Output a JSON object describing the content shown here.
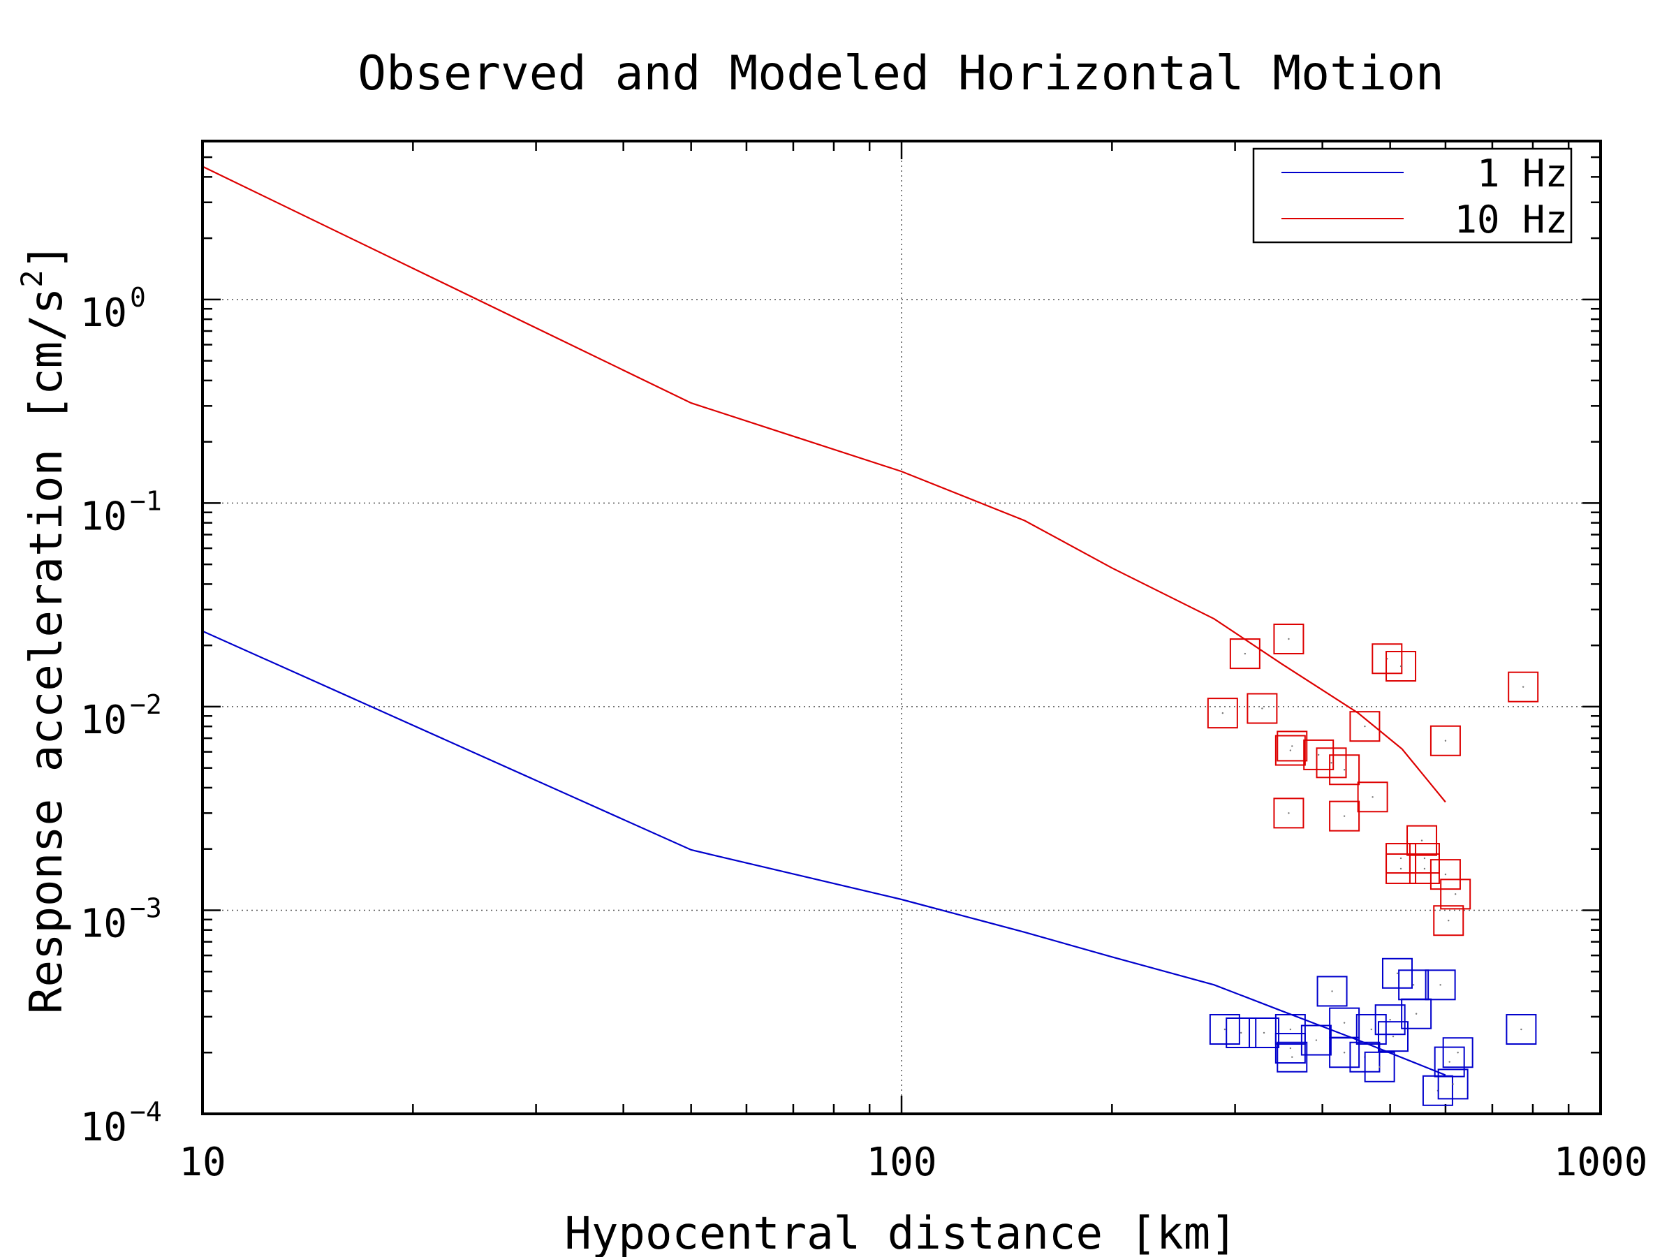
{
  "chart_data": {
    "type": "scatter",
    "title": "Observed and Modeled Horizontal Motion",
    "xlabel": "Hypocentral distance [km]",
    "ylabel_main": "Response acceleration [cm/s",
    "ylabel_exp": "2",
    "ylabel_close": "]",
    "x_scale": "log",
    "y_scale": "log",
    "xlim": [
      10,
      1000
    ],
    "ylim": [
      0.0001,
      6
    ],
    "x_ticks": [
      {
        "value": 10,
        "label": "10"
      },
      {
        "value": 100,
        "label": "100"
      },
      {
        "value": 1000,
        "label": "1000"
      }
    ],
    "y_ticks": [
      {
        "value": 1,
        "base": "10",
        "exp": "0"
      },
      {
        "value": 0.1,
        "base": "10",
        "exp": "−1"
      },
      {
        "value": 0.01,
        "base": "10",
        "exp": "−2"
      },
      {
        "value": 0.001,
        "base": "10",
        "exp": "−3"
      },
      {
        "value": 0.0001,
        "base": "10",
        "exp": "−4"
      }
    ],
    "grid": "dotted",
    "legend_position": "top-right",
    "series": [
      {
        "name": "1 Hz",
        "color": "#0000cc",
        "line": [
          [
            10,
            0.0235
          ],
          [
            50,
            0.00198
          ],
          [
            100,
            0.00113
          ],
          [
            150,
            0.00078
          ],
          [
            200,
            0.00059
          ],
          [
            280,
            0.00043
          ],
          [
            350,
            0.00032
          ],
          [
            450,
            0.00023
          ],
          [
            600,
            0.000155
          ]
        ],
        "points": [
          [
            290,
            0.00026
          ],
          [
            306,
            0.00025
          ],
          [
            330,
            0.00025
          ],
          [
            360,
            0.00026
          ],
          [
            360,
            0.00021
          ],
          [
            362,
            0.00019
          ],
          [
            392,
            0.00023
          ],
          [
            413,
            0.0004
          ],
          [
            430,
            0.00028
          ],
          [
            430,
            0.0002
          ],
          [
            460,
            0.00019
          ],
          [
            470,
            0.00026
          ],
          [
            483,
            0.00017
          ],
          [
            500,
            0.00029
          ],
          [
            505,
            0.00024
          ],
          [
            512,
            0.00049
          ],
          [
            540,
            0.00043
          ],
          [
            545,
            0.00031
          ],
          [
            590,
            0.00043
          ],
          [
            585,
            0.00013
          ],
          [
            608,
            0.00018
          ],
          [
            615,
            0.00014
          ],
          [
            625,
            0.0002
          ],
          [
            770,
            0.00026
          ]
        ]
      },
      {
        "name": "10 Hz",
        "color": "#dd0000",
        "line": [
          [
            10,
            4.5
          ],
          [
            50,
            0.31
          ],
          [
            100,
            0.143
          ],
          [
            150,
            0.082
          ],
          [
            200,
            0.048
          ],
          [
            280,
            0.027
          ],
          [
            350,
            0.0162
          ],
          [
            450,
            0.0093
          ],
          [
            520,
            0.0062
          ],
          [
            600,
            0.0034
          ]
        ],
        "points": [
          [
            288,
            0.0093
          ],
          [
            310,
            0.0182
          ],
          [
            328,
            0.0098
          ],
          [
            358,
            0.0215
          ],
          [
            360,
            0.0061
          ],
          [
            362,
            0.0064
          ],
          [
            358,
            0.003
          ],
          [
            395,
            0.0058
          ],
          [
            412,
            0.0053
          ],
          [
            430,
            0.0049
          ],
          [
            430,
            0.0029
          ],
          [
            460,
            0.008
          ],
          [
            472,
            0.0036
          ],
          [
            495,
            0.0172
          ],
          [
            518,
            0.0158
          ],
          [
            518,
            0.0018
          ],
          [
            518,
            0.0016
          ],
          [
            555,
            0.0022
          ],
          [
            560,
            0.0018
          ],
          [
            560,
            0.0016
          ],
          [
            600,
            0.0015
          ],
          [
            620,
            0.0012
          ],
          [
            606,
            0.00089
          ],
          [
            600,
            0.0068
          ],
          [
            775,
            0.0125
          ]
        ]
      }
    ]
  }
}
